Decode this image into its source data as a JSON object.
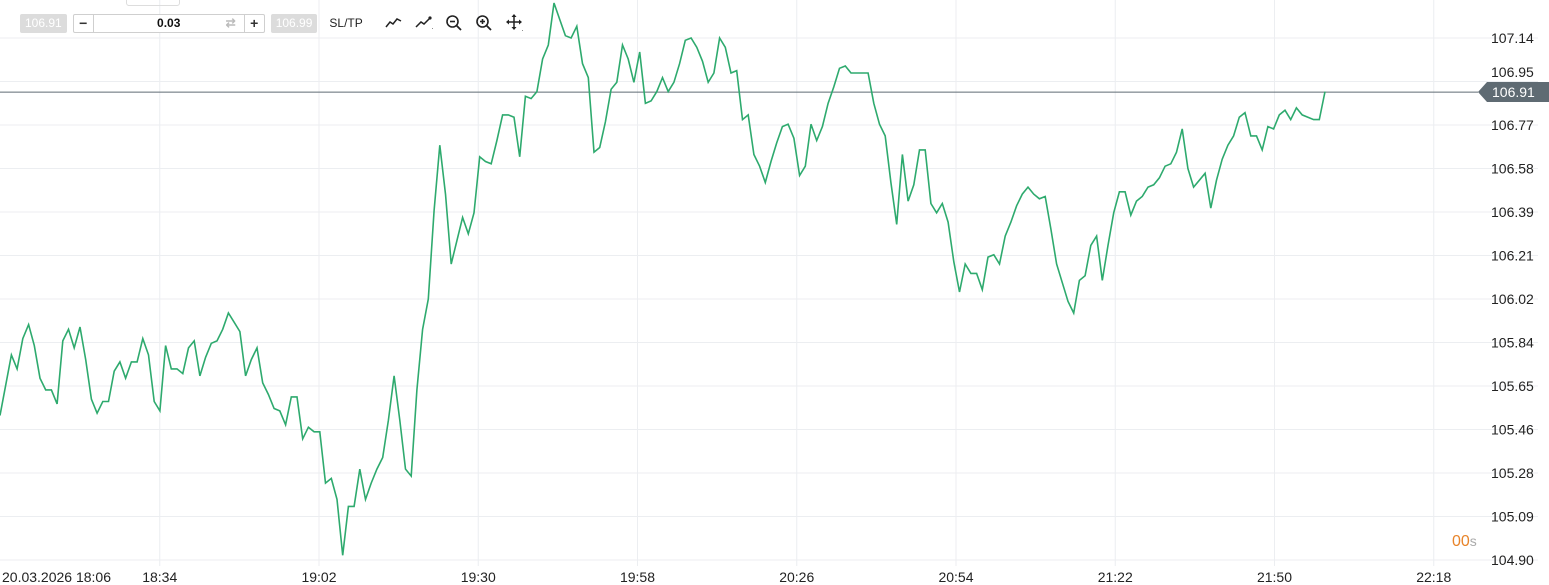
{
  "toolbar": {
    "bid": "106.91",
    "lot_value": "0.03",
    "minus_label": "−",
    "plus_label": "+",
    "ask": "106.99",
    "sltp_label": "SL/TP",
    "icons": [
      "line-chart-icon",
      "chart-type-icon",
      "zoom-out-icon",
      "zoom-in-icon",
      "pan-move-icon"
    ]
  },
  "timer": {
    "value": "00",
    "unit": "s",
    "color": "#e8842a"
  },
  "current_price": {
    "label": "106.91",
    "value": 106.91,
    "color": "#5f6b73"
  },
  "chart_data": {
    "type": "line",
    "line_color": "#2eaa6e",
    "grid": true,
    "y_axis_position": "right",
    "ylim": [
      104.9,
      107.14
    ],
    "y_ticks": [
      "107.14",
      "106.95",
      "106.77",
      "106.58",
      "106.39",
      "106.21",
      "106.02",
      "105.84",
      "105.65",
      "105.46",
      "105.28",
      "105.09",
      "104.90"
    ],
    "x_ticks": [
      "20.03.2026 18:06",
      "18:34",
      "19:02",
      "19:30",
      "19:58",
      "20:26",
      "20:54",
      "21:22",
      "21:50",
      "22:18"
    ],
    "values": [
      105.52,
      105.65,
      105.78,
      105.72,
      105.85,
      105.91,
      105.82,
      105.68,
      105.63,
      105.63,
      105.57,
      105.84,
      105.89,
      105.81,
      105.9,
      105.76,
      105.59,
      105.53,
      105.58,
      105.58,
      105.71,
      105.75,
      105.68,
      105.75,
      105.75,
      105.85,
      105.78,
      105.58,
      105.54,
      105.82,
      105.72,
      105.72,
      105.7,
      105.81,
      105.84,
      105.69,
      105.77,
      105.83,
      105.84,
      105.89,
      105.96,
      105.92,
      105.88,
      105.69,
      105.76,
      105.81,
      105.66,
      105.61,
      105.55,
      105.54,
      105.48,
      105.6,
      105.6,
      105.42,
      105.47,
      105.45,
      105.45,
      105.23,
      105.25,
      105.16,
      104.92,
      105.13,
      105.13,
      105.29,
      105.16,
      105.23,
      105.29,
      105.34,
      105.5,
      105.69,
      105.5,
      105.29,
      105.26,
      105.63,
      105.89,
      106.02,
      106.4,
      106.68,
      106.47,
      106.17,
      106.27,
      106.37,
      106.3,
      106.39,
      106.63,
      106.61,
      106.6,
      106.7,
      106.81,
      106.81,
      106.8,
      106.63,
      106.89,
      106.88,
      106.91,
      107.05,
      107.11,
      107.29,
      107.22,
      107.15,
      107.14,
      107.19,
      107.03,
      106.97,
      106.65,
      106.67,
      106.78,
      106.92,
      106.95,
      107.11,
      107.05,
      106.95,
      107.08,
      106.86,
      106.87,
      106.91,
      106.97,
      106.91,
      106.95,
      107.03,
      107.13,
      107.14,
      107.1,
      107.04,
      106.95,
      106.99,
      107.14,
      107.1,
      106.99,
      107.0,
      106.79,
      106.81,
      106.64,
      106.59,
      106.52,
      106.61,
      106.69,
      106.76,
      106.77,
      106.71,
      106.55,
      106.59,
      106.77,
      106.7,
      106.76,
      106.86,
      106.93,
      107.01,
      107.02,
      106.99,
      106.99,
      106.99,
      106.99,
      106.86,
      106.77,
      106.72,
      106.52,
      106.34,
      106.64,
      106.44,
      106.51,
      106.66,
      106.66,
      106.43,
      106.39,
      106.43,
      106.35,
      106.18,
      106.05,
      106.17,
      106.13,
      106.13,
      106.06,
      106.2,
      106.21,
      106.17,
      106.29,
      106.35,
      106.42,
      106.47,
      106.5,
      106.47,
      106.45,
      106.46,
      106.32,
      106.17,
      106.09,
      106.01,
      105.96,
      106.1,
      106.12,
      106.25,
      106.29,
      106.1,
      106.25,
      106.39,
      106.48,
      106.48,
      106.38,
      106.44,
      106.46,
      106.5,
      106.51,
      106.54,
      106.59,
      106.6,
      106.65,
      106.75,
      106.58,
      106.5,
      106.53,
      106.56,
      106.41,
      106.53,
      106.62,
      106.68,
      106.72,
      106.8,
      106.82,
      106.72,
      106.72,
      106.66,
      106.76,
      106.75,
      106.81,
      106.83,
      106.79,
      106.84,
      106.81,
      106.8,
      106.79,
      106.79,
      106.91
    ]
  }
}
